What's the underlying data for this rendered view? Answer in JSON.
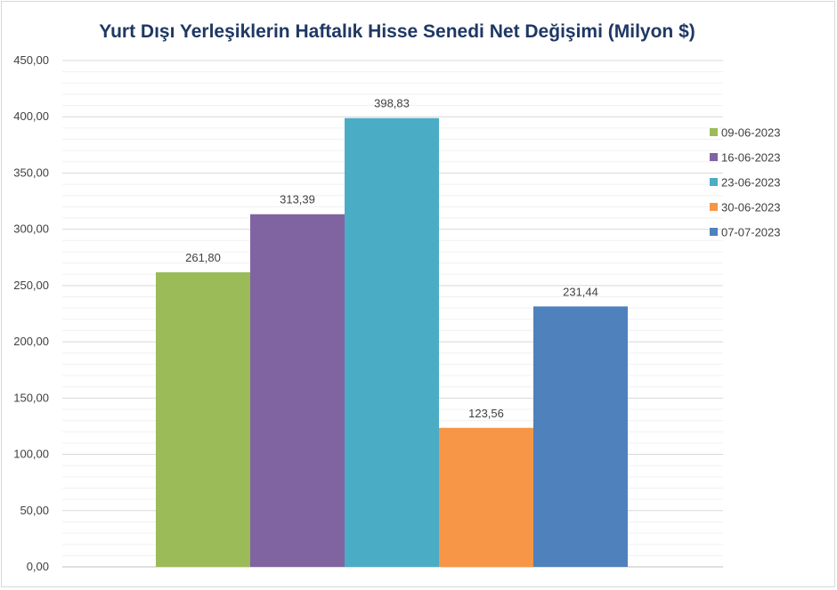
{
  "chart_data": {
    "type": "bar",
    "title": "Yurt Dışı Yerleşiklerin Haftalık Hisse Senedi Net Değişimi (Milyon $)",
    "xlabel": "",
    "ylabel": "",
    "ylim": [
      0,
      450
    ],
    "ytick_step": 50,
    "ytick_labels": [
      "0,00",
      "50,00",
      "100,00",
      "150,00",
      "200,00",
      "250,00",
      "300,00",
      "350,00",
      "400,00",
      "450,00"
    ],
    "grid": true,
    "legend_position": "right",
    "series": [
      {
        "name": "09-06-2023",
        "value": 261.8,
        "label": "261,80",
        "color": "#9BBB59"
      },
      {
        "name": "16-06-2023",
        "value": 313.39,
        "label": "313,39",
        "color": "#8064A2"
      },
      {
        "name": "23-06-2023",
        "value": 398.83,
        "label": "398,83",
        "color": "#4BACC6"
      },
      {
        "name": "30-06-2023",
        "value": 123.56,
        "label": "123,56",
        "color": "#F79646"
      },
      {
        "name": "07-07-2023",
        "value": 231.44,
        "label": "231,44",
        "color": "#4F81BD"
      }
    ]
  }
}
